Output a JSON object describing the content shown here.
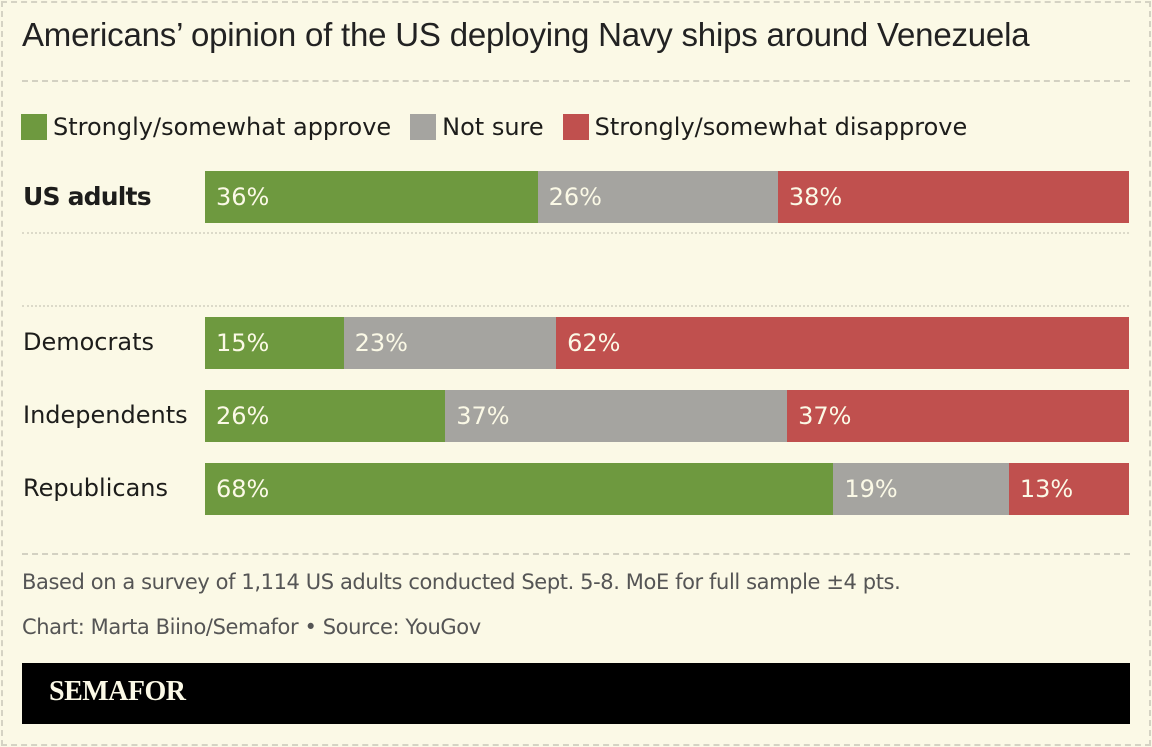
{
  "chart_data": {
    "type": "bar",
    "orientation": "horizontal",
    "stacked": true,
    "normalized_to": 100,
    "title": "Americans’ opinion of the US deploying Navy ships around Venezuela",
    "legend_position": "top-left",
    "series": [
      {
        "name": "Strongly/somewhat approve",
        "color": "#6e993f",
        "values": [
          36,
          15,
          26,
          68
        ]
      },
      {
        "name": "Not sure",
        "color": "#a5a4a0",
        "values": [
          26,
          23,
          37,
          19
        ]
      },
      {
        "name": "Strongly/somewhat disapprove",
        "color": "#c0504e",
        "values": [
          38,
          62,
          37,
          13
        ]
      }
    ],
    "categories": [
      "US adults",
      "Democrats",
      "Independents",
      "Republicans"
    ],
    "category_emphasis": [
      true,
      false,
      false,
      false
    ],
    "value_suffix": "%",
    "xlabel": "",
    "ylabel": "",
    "xlim": [
      0,
      100
    ],
    "grid": false
  },
  "footer": {
    "note": "Based on a survey of 1,114 US adults conducted Sept. 5-8. MoE for full sample ±4 pts.",
    "credit": "Chart: Marta Biino/Semafor • Source: YouGov",
    "brand": "SEMAFOR"
  },
  "colors": {
    "background": "#fbf9e6",
    "label_text": "#fbf9e6"
  }
}
